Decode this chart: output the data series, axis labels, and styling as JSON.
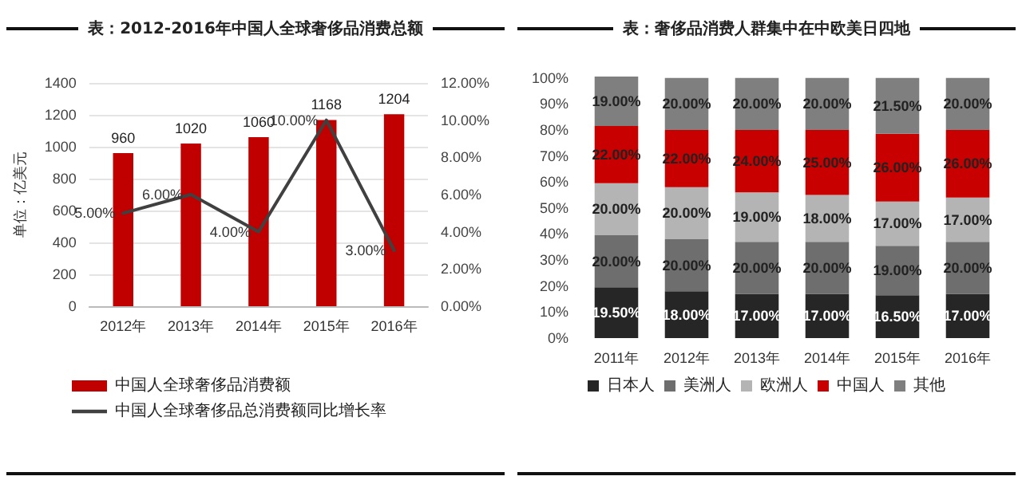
{
  "chart_data": [
    {
      "type": "bar",
      "title": "表：2012-2016年中国人全球奢侈品消费总额",
      "ylabel": "单位：亿美元",
      "categories": [
        "2012年",
        "2013年",
        "2014年",
        "2015年",
        "2016年"
      ],
      "series": [
        {
          "name": "中国人全球奢侈品消费额",
          "color": "#c00000",
          "values": [
            960,
            1020,
            1060,
            1168,
            1204
          ],
          "value_labels": [
            "960",
            "1020",
            "1060",
            "1168",
            "1204"
          ]
        },
        {
          "name": "中国人全球奢侈品总消费额同比增长率",
          "type": "line",
          "axis": "y2",
          "color": "#404040",
          "values": [
            5,
            6,
            4,
            10,
            3
          ],
          "value_labels": [
            "5.00%",
            "6.00%",
            "4.00%",
            "10.00%",
            "3.00%"
          ]
        }
      ],
      "ylim": [
        0,
        1400
      ],
      "yticks": [
        0,
        200,
        400,
        600,
        800,
        1000,
        1200,
        1400
      ],
      "y2lim": [
        0,
        12
      ],
      "y2ticks": [
        {
          "value": 0,
          "label": "0.00%"
        },
        {
          "value": 2,
          "label": "2.00%"
        },
        {
          "value": 4,
          "label": "4.00%"
        },
        {
          "value": 6,
          "label": "6.00%"
        },
        {
          "value": 8,
          "label": "8.00%"
        },
        {
          "value": 10,
          "label": "10.00%"
        },
        {
          "value": 12,
          "label": "12.00%"
        }
      ],
      "grid": "y",
      "legend": "bottom",
      "marker": "none",
      "line_style": "solid"
    },
    {
      "type": "bar",
      "title": "表：奢侈品消费人群集中在中欧美日四地",
      "stacked": true,
      "categories": [
        "2011年",
        "2012年",
        "2013年",
        "2014年",
        "2015年",
        "2016年"
      ],
      "series": [
        {
          "name": "日本人",
          "color": "#262626",
          "values": [
            19.5,
            18,
            17,
            17,
            16.5,
            17
          ],
          "value_labels": [
            "19.50%",
            "18.00%",
            "17.00%",
            "17.00%",
            "16.50%",
            "17.00%"
          ]
        },
        {
          "name": "美洲人",
          "color": "#6e6e6e",
          "values": [
            20,
            20,
            20,
            20,
            19,
            20
          ],
          "value_labels": [
            "20.00%",
            "20.00%",
            "20.00%",
            "20.00%",
            "19.00%",
            "20.00%"
          ]
        },
        {
          "name": "欧洲人",
          "color": "#b4b4b4",
          "values": [
            20,
            20,
            19,
            18,
            17,
            17
          ],
          "value_labels": [
            "20.00%",
            "20.00%",
            "19.00%",
            "18.00%",
            "17.00%",
            "17.00%"
          ]
        },
        {
          "name": "中国人",
          "color": "#c80000",
          "values": [
            22,
            22,
            24,
            25,
            26,
            26
          ],
          "value_labels": [
            "22.00%",
            "22.00%",
            "24.00%",
            "25.00%",
            "26.00%",
            "26.00%"
          ]
        },
        {
          "name": "其他",
          "color": "#7f7f7f",
          "values": [
            19,
            20,
            20,
            20,
            21.5,
            20
          ],
          "value_labels": [
            "19.00%",
            "20.00%",
            "20.00%",
            "20.00%",
            "21.50%",
            "20.00%"
          ]
        }
      ],
      "ylim": [
        0,
        100.5
      ],
      "yticks": [
        {
          "value": 0,
          "label": "0%"
        },
        {
          "value": 10,
          "label": "10%"
        },
        {
          "value": 20,
          "label": "20%"
        },
        {
          "value": 30,
          "label": "30%"
        },
        {
          "value": 40,
          "label": "40%"
        },
        {
          "value": 50,
          "label": "50%"
        },
        {
          "value": 60,
          "label": "60%"
        },
        {
          "value": 70,
          "label": "70%"
        },
        {
          "value": 80,
          "label": "80%"
        },
        {
          "value": 90,
          "label": "90%"
        },
        {
          "value": 100,
          "label": "100%"
        }
      ],
      "grid": false,
      "legend": "bottom"
    }
  ]
}
